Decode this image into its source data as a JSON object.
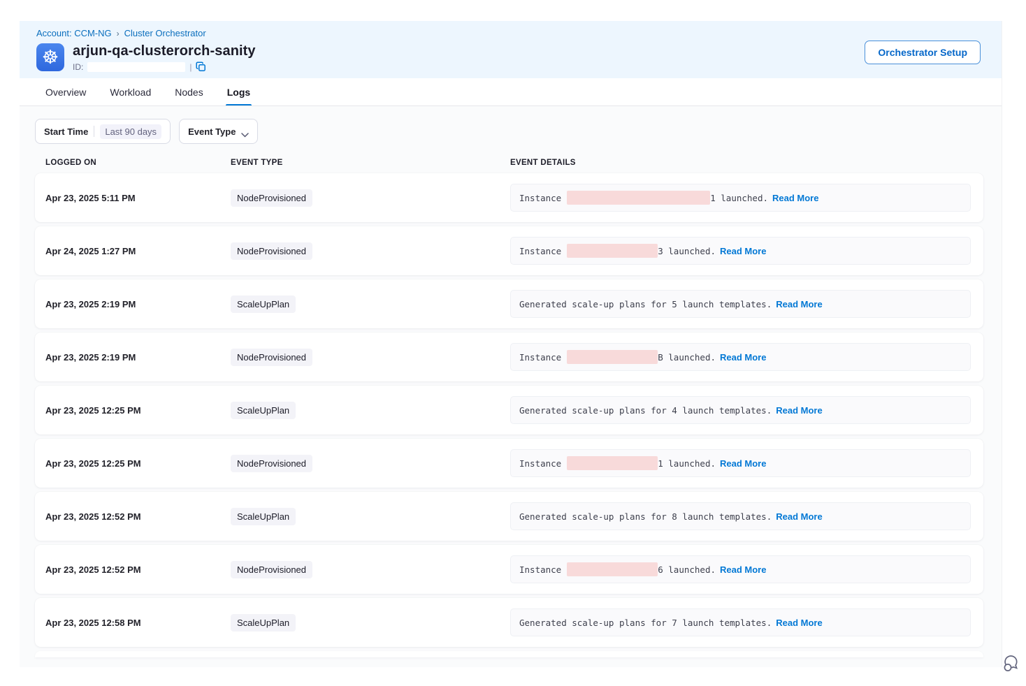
{
  "breadcrumb": {
    "account": "Account: CCM-NG",
    "separator": "›",
    "section": "Cluster Orchestrator"
  },
  "header": {
    "title": "arjun-qa-clusterorch-sanity",
    "id_label": "ID:",
    "id_separator": "|",
    "setup_button_label": "Orchestrator Setup"
  },
  "tabs": [
    {
      "label": "Overview",
      "active": false
    },
    {
      "label": "Workload",
      "active": false
    },
    {
      "label": "Nodes",
      "active": false
    },
    {
      "label": "Logs",
      "active": true
    }
  ],
  "filters": {
    "start_time_label": "Start Time",
    "start_time_value": "Last 90 days",
    "event_type_label": "Event Type"
  },
  "table": {
    "columns": {
      "logged_on": "LOGGED ON",
      "event_type": "EVENT TYPE",
      "event_details": "EVENT DETAILS"
    },
    "rows": [
      {
        "logged_on": "Apr 23, 2025 5:11 PM",
        "event_type": "NodeProvisioned",
        "detail_prefix": "Instance",
        "redacted_width": 205,
        "detail_suffix": "1 launched.",
        "read_more_label": "Read More"
      },
      {
        "logged_on": "Apr 24, 2025 1:27 PM",
        "event_type": "NodeProvisioned",
        "detail_prefix": "Instance",
        "redacted_width": 130,
        "detail_suffix": "3 launched.",
        "read_more_label": "Read More"
      },
      {
        "logged_on": "Apr 23, 2025 2:19 PM",
        "event_type": "ScaleUpPlan",
        "detail_prefix": "Generated scale-up plans for 5 launch templates.",
        "redacted_width": 0,
        "detail_suffix": "",
        "read_more_label": "Read More"
      },
      {
        "logged_on": "Apr 23, 2025 2:19 PM",
        "event_type": "NodeProvisioned",
        "detail_prefix": "Instance",
        "redacted_width": 130,
        "detail_suffix": "B launched.",
        "read_more_label": "Read More"
      },
      {
        "logged_on": "Apr 23, 2025 12:25 PM",
        "event_type": "ScaleUpPlan",
        "detail_prefix": "Generated scale-up plans for 4 launch templates.",
        "redacted_width": 0,
        "detail_suffix": "",
        "read_more_label": "Read More"
      },
      {
        "logged_on": "Apr 23, 2025 12:25 PM",
        "event_type": "NodeProvisioned",
        "detail_prefix": "Instance",
        "redacted_width": 130,
        "detail_suffix": "1 launched.",
        "read_more_label": "Read More"
      },
      {
        "logged_on": "Apr 23, 2025 12:52 PM",
        "event_type": "ScaleUpPlan",
        "detail_prefix": "Generated scale-up plans for 8 launch templates.",
        "redacted_width": 0,
        "detail_suffix": "",
        "read_more_label": "Read More"
      },
      {
        "logged_on": "Apr 23, 2025 12:52 PM",
        "event_type": "NodeProvisioned",
        "detail_prefix": "Instance",
        "redacted_width": 130,
        "detail_suffix": "6 launched.",
        "read_more_label": "Read More"
      },
      {
        "logged_on": "Apr 23, 2025 12:58 PM",
        "event_type": "ScaleUpPlan",
        "detail_prefix": "Generated scale-up plans for 7 launch templates.",
        "redacted_width": 0,
        "detail_suffix": "",
        "read_more_label": "Read More"
      }
    ]
  },
  "icons": {
    "app_logo": "kubernetes-wheel",
    "app_logo_glyph": "☸",
    "copy": "copy-icon",
    "chevron": "chevron-down-icon",
    "chat": "chat-bubbles-icon"
  },
  "colors": {
    "accent_blue": "#0278d5",
    "link_blue": "#0a6ebd",
    "header_band_bg": "#edf6fe",
    "body_bg": "#fafbfc",
    "badge_bg": "#f3f3f8",
    "redaction_pink": "#f8dada",
    "k8s_icon_blue": "#3b74e8"
  }
}
